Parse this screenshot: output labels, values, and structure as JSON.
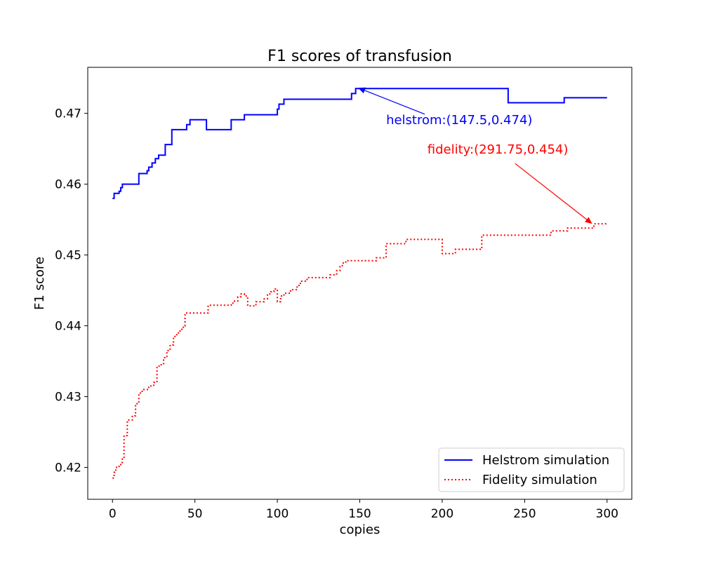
{
  "chart_data": {
    "type": "line",
    "title": "F1 scores of transfusion",
    "xlabel": "copies",
    "ylabel": "F1 score",
    "xlim": [
      -15,
      315
    ],
    "ylim": [
      0.4155,
      0.4765
    ],
    "xticks": [
      0,
      50,
      100,
      150,
      200,
      250,
      300
    ],
    "yticks": [
      0.42,
      0.43,
      0.44,
      0.45,
      0.46,
      0.47
    ],
    "xtick_labels": [
      "0",
      "50",
      "100",
      "150",
      "200",
      "250",
      "300"
    ],
    "ytick_labels": [
      "0.42",
      "0.43",
      "0.44",
      "0.45",
      "0.46",
      "0.47"
    ],
    "grid": false,
    "legend_position": "lower-right",
    "series": [
      {
        "name": "Helstrom simulation",
        "color": "#0000ff",
        "line_style": "solid",
        "step": true,
        "x": [
          0,
          1,
          4,
          5,
          6,
          16,
          21,
          22,
          24,
          26,
          28,
          32,
          36,
          45,
          47,
          57,
          72,
          80,
          100,
          101,
          104,
          114,
          140,
          145,
          147.5,
          170,
          200,
          230,
          240,
          260,
          274,
          280,
          300
        ],
        "y": [
          0.458,
          0.4587,
          0.459,
          0.4595,
          0.46,
          0.4615,
          0.4619,
          0.4624,
          0.463,
          0.4636,
          0.4641,
          0.4656,
          0.4677,
          0.4684,
          0.4691,
          0.4677,
          0.4691,
          0.4698,
          0.4706,
          0.4713,
          0.472,
          0.472,
          0.472,
          0.4728,
          0.4735,
          0.4735,
          0.4735,
          0.4735,
          0.4715,
          0.4715,
          0.4722,
          0.4722,
          0.4722
        ]
      },
      {
        "name": "Fidelity simulation",
        "color": "#ff0000",
        "line_style": "dotted",
        "step": true,
        "x": [
          0,
          1,
          2,
          4,
          5,
          6,
          7,
          9,
          12,
          14,
          16,
          18,
          22,
          25,
          27,
          29,
          31,
          33,
          35,
          37,
          39,
          41,
          43,
          44,
          58,
          72,
          74,
          76,
          78,
          80,
          82,
          87,
          92,
          94,
          96,
          98,
          100,
          102,
          104,
          108,
          112,
          114,
          118,
          132,
          136,
          138,
          140,
          142,
          150,
          160,
          166,
          178,
          192,
          200,
          208,
          218,
          224,
          240,
          262,
          266,
          276,
          290,
          292,
          300
        ],
        "y": [
          0.4185,
          0.4193,
          0.42,
          0.4203,
          0.4207,
          0.4212,
          0.4245,
          0.4267,
          0.4273,
          0.429,
          0.4305,
          0.431,
          0.4315,
          0.432,
          0.4343,
          0.4345,
          0.4355,
          0.4365,
          0.4373,
          0.4385,
          0.439,
          0.4395,
          0.44,
          0.4418,
          0.4429,
          0.4432,
          0.4435,
          0.4441,
          0.4445,
          0.4442,
          0.4428,
          0.4434,
          0.4438,
          0.4445,
          0.4448,
          0.4452,
          0.4434,
          0.4442,
          0.4446,
          0.4451,
          0.4457,
          0.4463,
          0.4468,
          0.4472,
          0.4478,
          0.4485,
          0.449,
          0.4492,
          0.4492,
          0.4496,
          0.4516,
          0.4522,
          0.4522,
          0.4502,
          0.4508,
          0.4508,
          0.4528,
          0.4528,
          0.4528,
          0.4534,
          0.4538,
          0.4538,
          0.4544,
          0.4544
        ]
      }
    ],
    "annotations": [
      {
        "text": "helstrom:(147.5,0.474)",
        "color": "#0000ff",
        "xy": [
          149,
          0.4736
        ],
        "text_xy": [
          166,
          0.4685
        ]
      },
      {
        "text": "fidelity:(291.75,0.454)",
        "color": "#ff0000",
        "xy": [
          291,
          0.4544
        ],
        "text_xy": [
          191,
          0.4643
        ]
      }
    ]
  }
}
